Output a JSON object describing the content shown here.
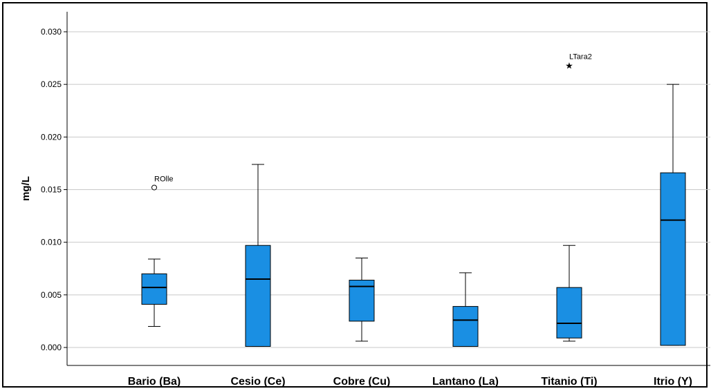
{
  "chart_data": {
    "type": "boxplot",
    "ylabel": "mg/L",
    "ylim": [
      0.0,
      0.0315
    ],
    "y_ticks": [
      "0.000",
      "0.005",
      "0.010",
      "0.015",
      "0.020",
      "0.025",
      "0.030"
    ],
    "y_tick_values": [
      0.0,
      0.005,
      0.01,
      0.015,
      0.02,
      0.025,
      0.03
    ],
    "grid": true,
    "categories": [
      "Bario (Ba)",
      "Cesio (Ce)",
      "Cobre (Cu)",
      "Lantano (La)",
      "Titanio (Ti)",
      "Itrio (Y)"
    ],
    "box_color": "#1a8fe3",
    "boxes": [
      {
        "category": "Bario (Ba)",
        "whisker_low": 0.002,
        "q1": 0.0041,
        "median": 0.0057,
        "q3": 0.007,
        "whisker_high": 0.0084,
        "outliers": [
          {
            "value": 0.0152,
            "label": "ROlle",
            "marker": "circle"
          }
        ]
      },
      {
        "category": "Cesio (Ce)",
        "whisker_low": 0.0001,
        "q1": 0.0001,
        "median": 0.0065,
        "q3": 0.0097,
        "whisker_high": 0.0174,
        "outliers": []
      },
      {
        "category": "Cobre (Cu)",
        "whisker_low": 0.0006,
        "q1": 0.0025,
        "median": 0.0058,
        "q3": 0.0064,
        "whisker_high": 0.0085,
        "outliers": []
      },
      {
        "category": "Lantano (La)",
        "whisker_low": 0.0001,
        "q1": 0.0001,
        "median": 0.0026,
        "q3": 0.0039,
        "whisker_high": 0.0071,
        "outliers": []
      },
      {
        "category": "Titanio (Ti)",
        "whisker_low": 0.0006,
        "q1": 0.0009,
        "median": 0.0023,
        "q3": 0.0057,
        "whisker_high": 0.0097,
        "outliers": [
          {
            "value": 0.0268,
            "label": "LTara2",
            "marker": "star"
          }
        ]
      },
      {
        "category": "Itrio (Y)",
        "whisker_low": 0.0002,
        "q1": 0.0002,
        "median": 0.0121,
        "q3": 0.0166,
        "whisker_high": 0.025,
        "outliers": []
      }
    ]
  }
}
